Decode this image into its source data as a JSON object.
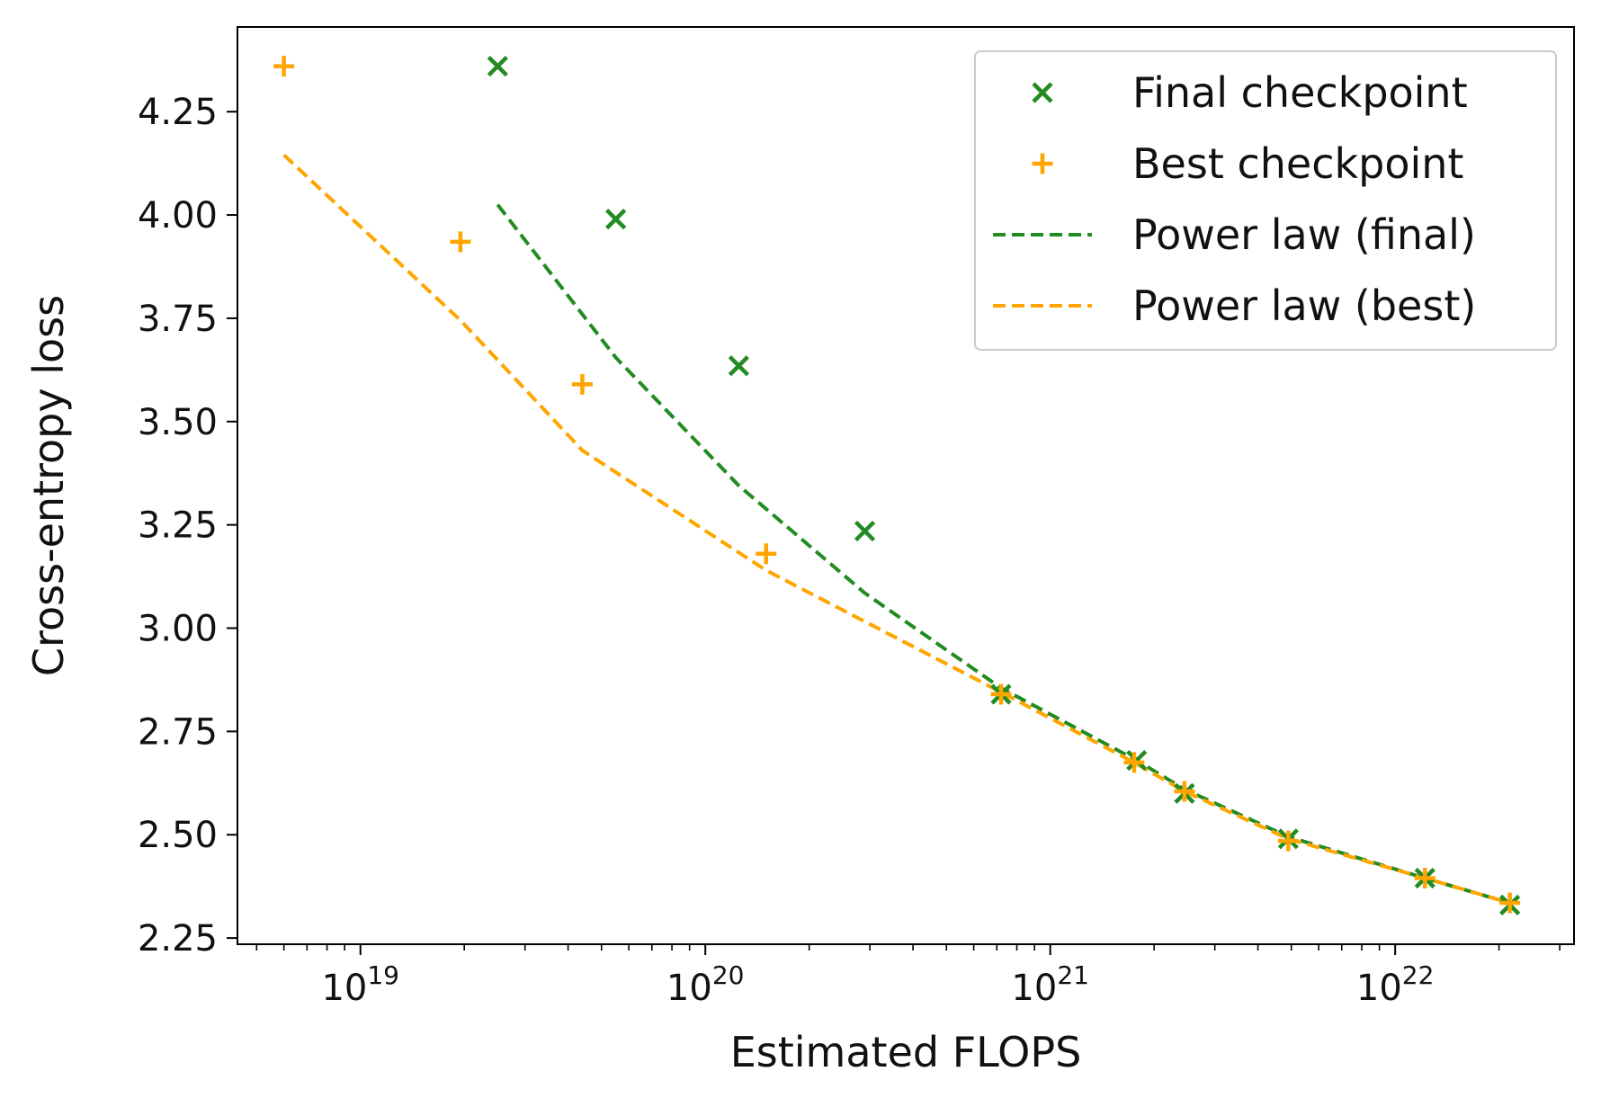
{
  "chart_data": {
    "type": "scatter",
    "xlabel": "Estimated FLOPS",
    "ylabel": "Cross-entropy loss",
    "x_scale": "log",
    "xlim": [
      4.4e+18,
      3.3e+22
    ],
    "ylim": [
      2.235,
      4.455
    ],
    "y_ticks": [
      2.25,
      2.5,
      2.75,
      3.0,
      3.25,
      3.5,
      3.75,
      4.0,
      4.25
    ],
    "y_tick_labels": [
      "2.25",
      "2.50",
      "2.75",
      "3.00",
      "3.25",
      "3.50",
      "3.75",
      "4.00",
      "4.25"
    ],
    "x_major_ticks": [
      {
        "base": "10",
        "exp": "19",
        "value": 1e+19
      },
      {
        "base": "10",
        "exp": "20",
        "value": 1e+20
      },
      {
        "base": "10",
        "exp": "21",
        "value": 1e+21
      },
      {
        "base": "10",
        "exp": "22",
        "value": 1e+22
      }
    ],
    "grid": false,
    "legend_position": "top-right",
    "series": [
      {
        "name": "Final checkpoint",
        "kind": "scatter",
        "marker": "x",
        "color": "#228b22",
        "points": [
          {
            "x": 2.5e+19,
            "y": 4.36
          },
          {
            "x": 5.5e+19,
            "y": 3.99
          },
          {
            "x": 1.25e+20,
            "y": 3.635
          },
          {
            "x": 2.9e+20,
            "y": 3.235
          },
          {
            "x": 7.2e+20,
            "y": 2.84
          },
          {
            "x": 1.78e+21,
            "y": 2.68
          },
          {
            "x": 2.45e+21,
            "y": 2.6
          },
          {
            "x": 4.9e+21,
            "y": 2.49
          },
          {
            "x": 1.22e+22,
            "y": 2.395
          },
          {
            "x": 2.15e+22,
            "y": 2.33
          }
        ]
      },
      {
        "name": "Best checkpoint",
        "kind": "scatter",
        "marker": "+",
        "color": "#ffa500",
        "points": [
          {
            "x": 6e+18,
            "y": 4.36
          },
          {
            "x": 1.95e+19,
            "y": 3.935
          },
          {
            "x": 4.4e+19,
            "y": 3.59
          },
          {
            "x": 1.5e+20,
            "y": 3.18
          },
          {
            "x": 7.2e+20,
            "y": 2.84
          },
          {
            "x": 1.75e+21,
            "y": 2.675
          },
          {
            "x": 2.45e+21,
            "y": 2.605
          },
          {
            "x": 4.9e+21,
            "y": 2.485
          },
          {
            "x": 1.22e+22,
            "y": 2.395
          },
          {
            "x": 2.15e+22,
            "y": 2.335
          }
        ]
      },
      {
        "name": "Power law (final)",
        "kind": "line",
        "dash": "dashed",
        "color": "#228b22",
        "points": [
          {
            "x": 2.5e+19,
            "y": 4.025
          },
          {
            "x": 5.5e+19,
            "y": 3.655
          },
          {
            "x": 1.25e+20,
            "y": 3.345
          },
          {
            "x": 2.9e+20,
            "y": 3.085
          },
          {
            "x": 7.2e+20,
            "y": 2.855
          },
          {
            "x": 1.78e+21,
            "y": 2.68
          },
          {
            "x": 2.45e+21,
            "y": 2.61
          },
          {
            "x": 4.9e+21,
            "y": 2.495
          },
          {
            "x": 1.22e+22,
            "y": 2.395
          },
          {
            "x": 2.15e+22,
            "y": 2.335
          }
        ]
      },
      {
        "name": "Power law (best)",
        "kind": "line",
        "dash": "dashed",
        "color": "#ffa500",
        "points": [
          {
            "x": 6e+18,
            "y": 4.145
          },
          {
            "x": 1.95e+19,
            "y": 3.745
          },
          {
            "x": 4.4e+19,
            "y": 3.43
          },
          {
            "x": 1.5e+20,
            "y": 3.14
          },
          {
            "x": 7.2e+20,
            "y": 2.845
          },
          {
            "x": 1.75e+21,
            "y": 2.675
          },
          {
            "x": 2.45e+21,
            "y": 2.605
          },
          {
            "x": 4.9e+21,
            "y": 2.49
          },
          {
            "x": 1.22e+22,
            "y": 2.395
          },
          {
            "x": 2.15e+22,
            "y": 2.335
          }
        ]
      }
    ]
  }
}
